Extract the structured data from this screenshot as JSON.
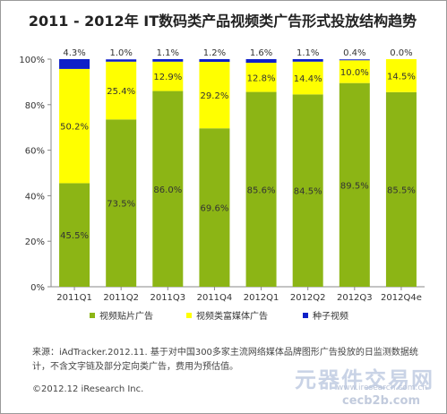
{
  "chart_data": {
    "type": "bar",
    "stacked": true,
    "title": "2011 - 2012年 IT数码类产品视频类广告形式投放结构趋势",
    "categories": [
      "2011Q1",
      "2011Q2",
      "2011Q3",
      "2011Q4",
      "2012Q1",
      "2012Q2",
      "2012Q3",
      "2012Q4e"
    ],
    "series": [
      {
        "name": "视频贴片广告",
        "color": "#8cb515",
        "values": [
          45.5,
          73.5,
          86.0,
          69.6,
          85.6,
          84.5,
          89.5,
          85.5
        ]
      },
      {
        "name": "视频类富媒体广告",
        "color": "#ffff00",
        "values": [
          50.2,
          25.4,
          12.9,
          29.2,
          12.8,
          14.4,
          10.0,
          14.5
        ]
      },
      {
        "name": "种子视频",
        "color": "#0f20c8",
        "values": [
          4.3,
          1.0,
          1.1,
          1.2,
          1.6,
          1.1,
          0.4,
          0.0
        ]
      }
    ],
    "value_labels": {
      "bottom": [
        "45.5%",
        "73.5%",
        "86.0%",
        "69.6%",
        "85.6%",
        "84.5%",
        "89.5%",
        "85.5%"
      ],
      "middle": [
        "50.2%",
        "25.4%",
        "12.9%",
        "29.2%",
        "12.8%",
        "14.4%",
        "10.0%",
        "14.5%"
      ],
      "top": [
        "4.3%",
        "1.0%",
        "1.1%",
        "1.2%",
        "1.6%",
        "1.1%",
        "0.4%",
        "0.0%"
      ]
    },
    "y_ticks": [
      "0%",
      "20%",
      "40%",
      "60%",
      "80%",
      "100%"
    ],
    "ylim": [
      0,
      100
    ],
    "grid": false,
    "legend_position": "bottom"
  },
  "footer": {
    "source_line1": "来源：iAdTracker.2012.11. 基于对中国300多家主流网络媒体品牌图形广告投放的日监测数据统",
    "source_line2": "计，不含文字链及部分定向类广告，费用为预估值。",
    "copyright": "©2012.12 iResearch Inc.",
    "watermark_text": "元器件交易网",
    "watermark_url1": "www.iresearch.com.cn",
    "watermark_url2": "cecb2b.com"
  }
}
